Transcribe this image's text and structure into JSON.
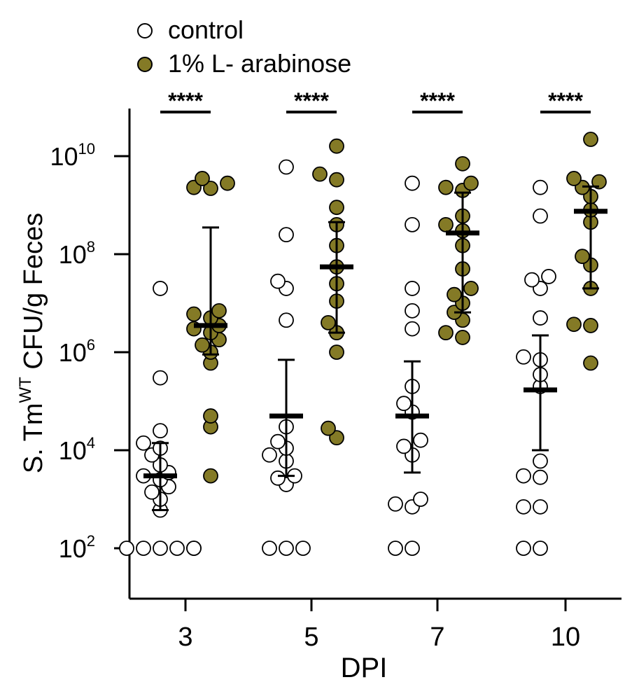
{
  "chart_data": {
    "type": "scatter",
    "xlabel": "DPI",
    "ylabel_main": "S. Tm",
    "ylabel_sup": "WT",
    "ylabel_rest": " CFU/g Feces",
    "yscale": "log",
    "ylim": [
      10,
      100000000000.0
    ],
    "yticks": [
      {
        "value": 100,
        "base": "10",
        "exp": "2"
      },
      {
        "value": 10000,
        "base": "10",
        "exp": "4"
      },
      {
        "value": 1000000,
        "base": "10",
        "exp": "6"
      },
      {
        "value": 100000000,
        "base": "10",
        "exp": "8"
      },
      {
        "value": 10000000000,
        "base": "10",
        "exp": "10"
      }
    ],
    "categories": [
      "3",
      "5",
      "7",
      "10"
    ],
    "significance": [
      "****",
      "****",
      "****",
      "****"
    ],
    "colors": {
      "control_fill": "#ffffff",
      "arabinose_fill": "#847a26",
      "stroke": "#000000"
    },
    "series": [
      {
        "name": "control",
        "groups": [
          {
            "median": 3000,
            "err": [
              600,
              14000
            ],
            "values": [
              100,
              100,
              100,
              100,
              100,
              100,
              600,
              1000,
              1400,
              1800,
              2500,
              3000,
              3500,
              5000,
              8000,
              11000,
              14000,
              25000,
              300000,
              20000000
            ]
          },
          {
            "median": 50000,
            "err": [
              3000,
              700000
            ],
            "values": [
              100,
              100,
              100,
              2000,
              2700,
              3000,
              6000,
              8000,
              11000,
              15000,
              30000,
              4500000,
              20000000,
              28000000,
              250000000,
              6000000000
            ]
          },
          {
            "median": 50000,
            "err": [
              3500,
              650000
            ],
            "values": [
              100,
              100,
              700,
              800,
              1000,
              8000,
              12000,
              16000,
              60000,
              90000,
              200000,
              3000000,
              7000000,
              20000000,
              400000000,
              2800000000
            ]
          },
          {
            "median": 170000,
            "err": [
              10000,
              2200000
            ],
            "values": [
              100,
              100,
              700,
              700,
              2800,
              3000,
              6000,
              200000,
              350000,
              700000,
              800000,
              5000000,
              20000000,
              30000000,
              35000000,
              600000000,
              2300000000
            ]
          }
        ]
      },
      {
        "name": "1% L- arabinose",
        "groups": [
          {
            "median": 3500000,
            "err": [
              900000,
              350000000
            ],
            "values": [
              3000,
              30000,
              50000,
              600000,
              1000000,
              1400000,
              1800000,
              2500000,
              3000000,
              3500000,
              5000000,
              6000000,
              7000000,
              2200000000,
              2300000000,
              2800000000,
              3500000000
            ]
          },
          {
            "median": 55000000,
            "err": [
              2500000,
              450000000
            ],
            "values": [
              18000,
              28000,
              1000000,
              2500000,
              4000000,
              11000000,
              25000000,
              55000000,
              150000000,
              400000000,
              900000000,
              3300000000,
              4300000000,
              16000000000
            ]
          },
          {
            "median": 270000000,
            "err": [
              6500000,
              1800000000
            ],
            "values": [
              2000000,
              2500000,
              4500000,
              6500000,
              10000000,
              15000000,
              20000000,
              50000000,
              150000000,
              300000000,
              400000000,
              600000000,
              2000000000,
              2300000000,
              2800000000,
              7000000000
            ]
          },
          {
            "median": 750000000,
            "err": [
              20000000,
              2400000000
            ],
            "values": [
              600000,
              3500000,
              3700000,
              20000000,
              60000000,
              90000000,
              450000000,
              800000000,
              1500000000,
              2300000000,
              3000000000,
              3500000000,
              22000000000
            ]
          }
        ]
      }
    ]
  }
}
